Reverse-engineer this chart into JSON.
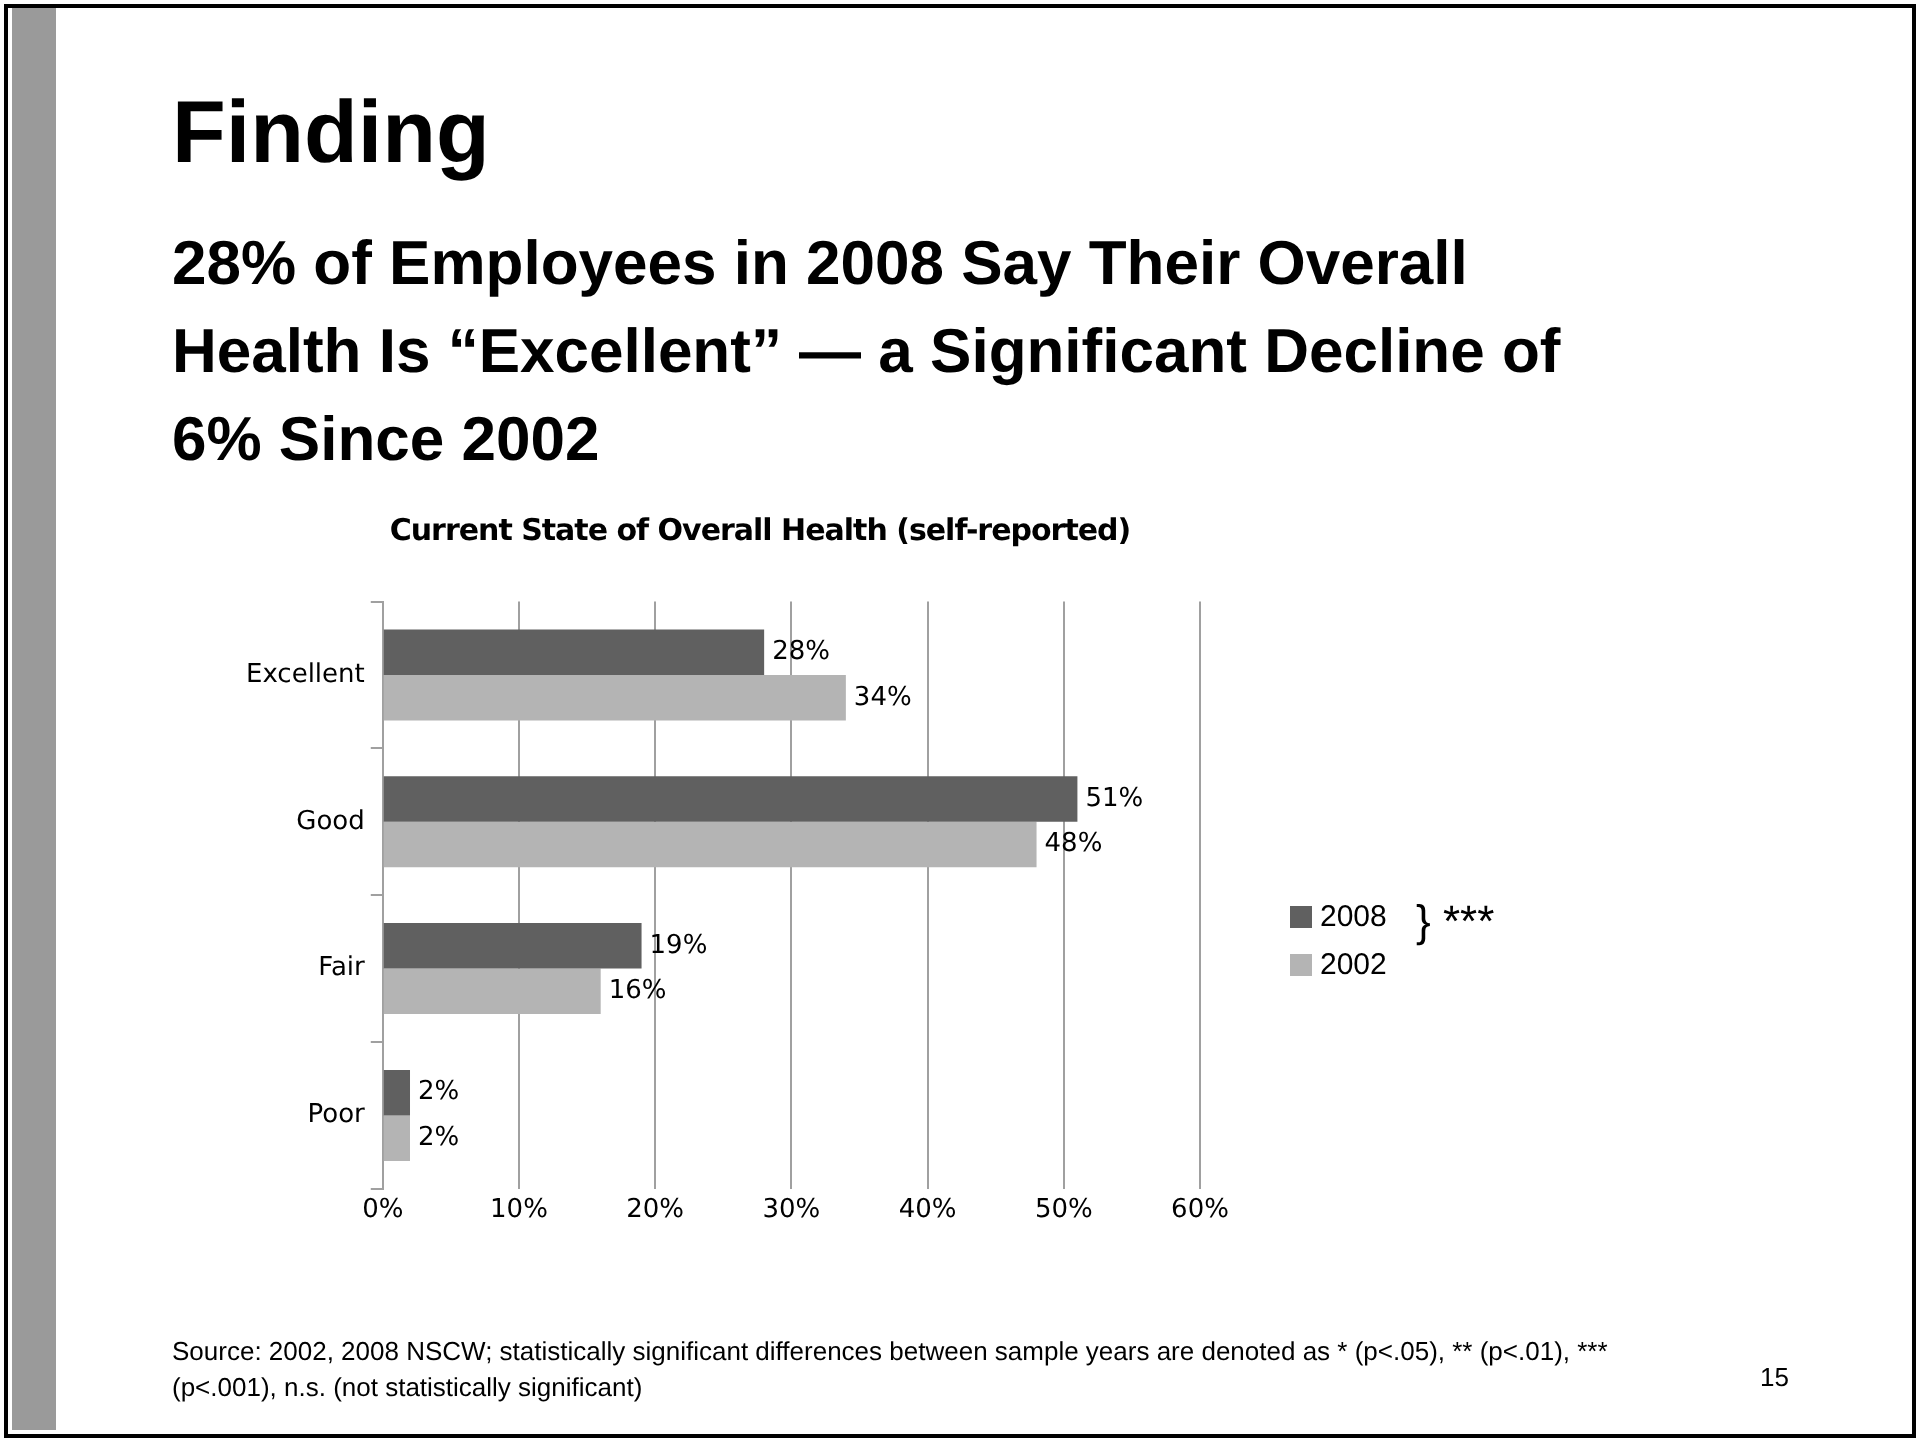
{
  "chart_data": {
    "type": "bar",
    "orientation": "horizontal",
    "title": "Current State of Overall Health (self-reported)",
    "categories": [
      "Excellent",
      "Good",
      "Fair",
      "Poor"
    ],
    "series": [
      {
        "name": "2008",
        "color": "#606060",
        "values": [
          28,
          51,
          19,
          2
        ],
        "value_labels": [
          "28%",
          "51%",
          "19%",
          "2%"
        ]
      },
      {
        "name": "2002",
        "color": "#b4b4b4",
        "values": [
          34,
          48,
          16,
          2
        ],
        "value_labels": [
          "34%",
          "48%",
          "16%",
          "2%"
        ]
      }
    ],
    "xlim": [
      0,
      60
    ],
    "xticks": [
      {
        "value": 0,
        "label": "0%"
      },
      {
        "value": 10,
        "label": "10%"
      },
      {
        "value": 20,
        "label": "20%"
      },
      {
        "value": 30,
        "label": "30%"
      },
      {
        "value": 40,
        "label": "40%"
      },
      {
        "value": 50,
        "label": "50%"
      },
      {
        "value": 60,
        "label": "60%"
      }
    ],
    "grid": "x",
    "legend": "right",
    "annotations": [
      "Finding",
      "28% of Employees in 2008 Say Their Overall Health Is “Excellent” — a Significant Decline of 6% Since 2002",
      "} ***",
      "Source: 2002, 2008 NSCW; statistically significant differences between sample years are denoted as * (p<.05), ** (p<.01), *** (p<.001), n.s. (not statistically significant)",
      "15"
    ]
  }
}
